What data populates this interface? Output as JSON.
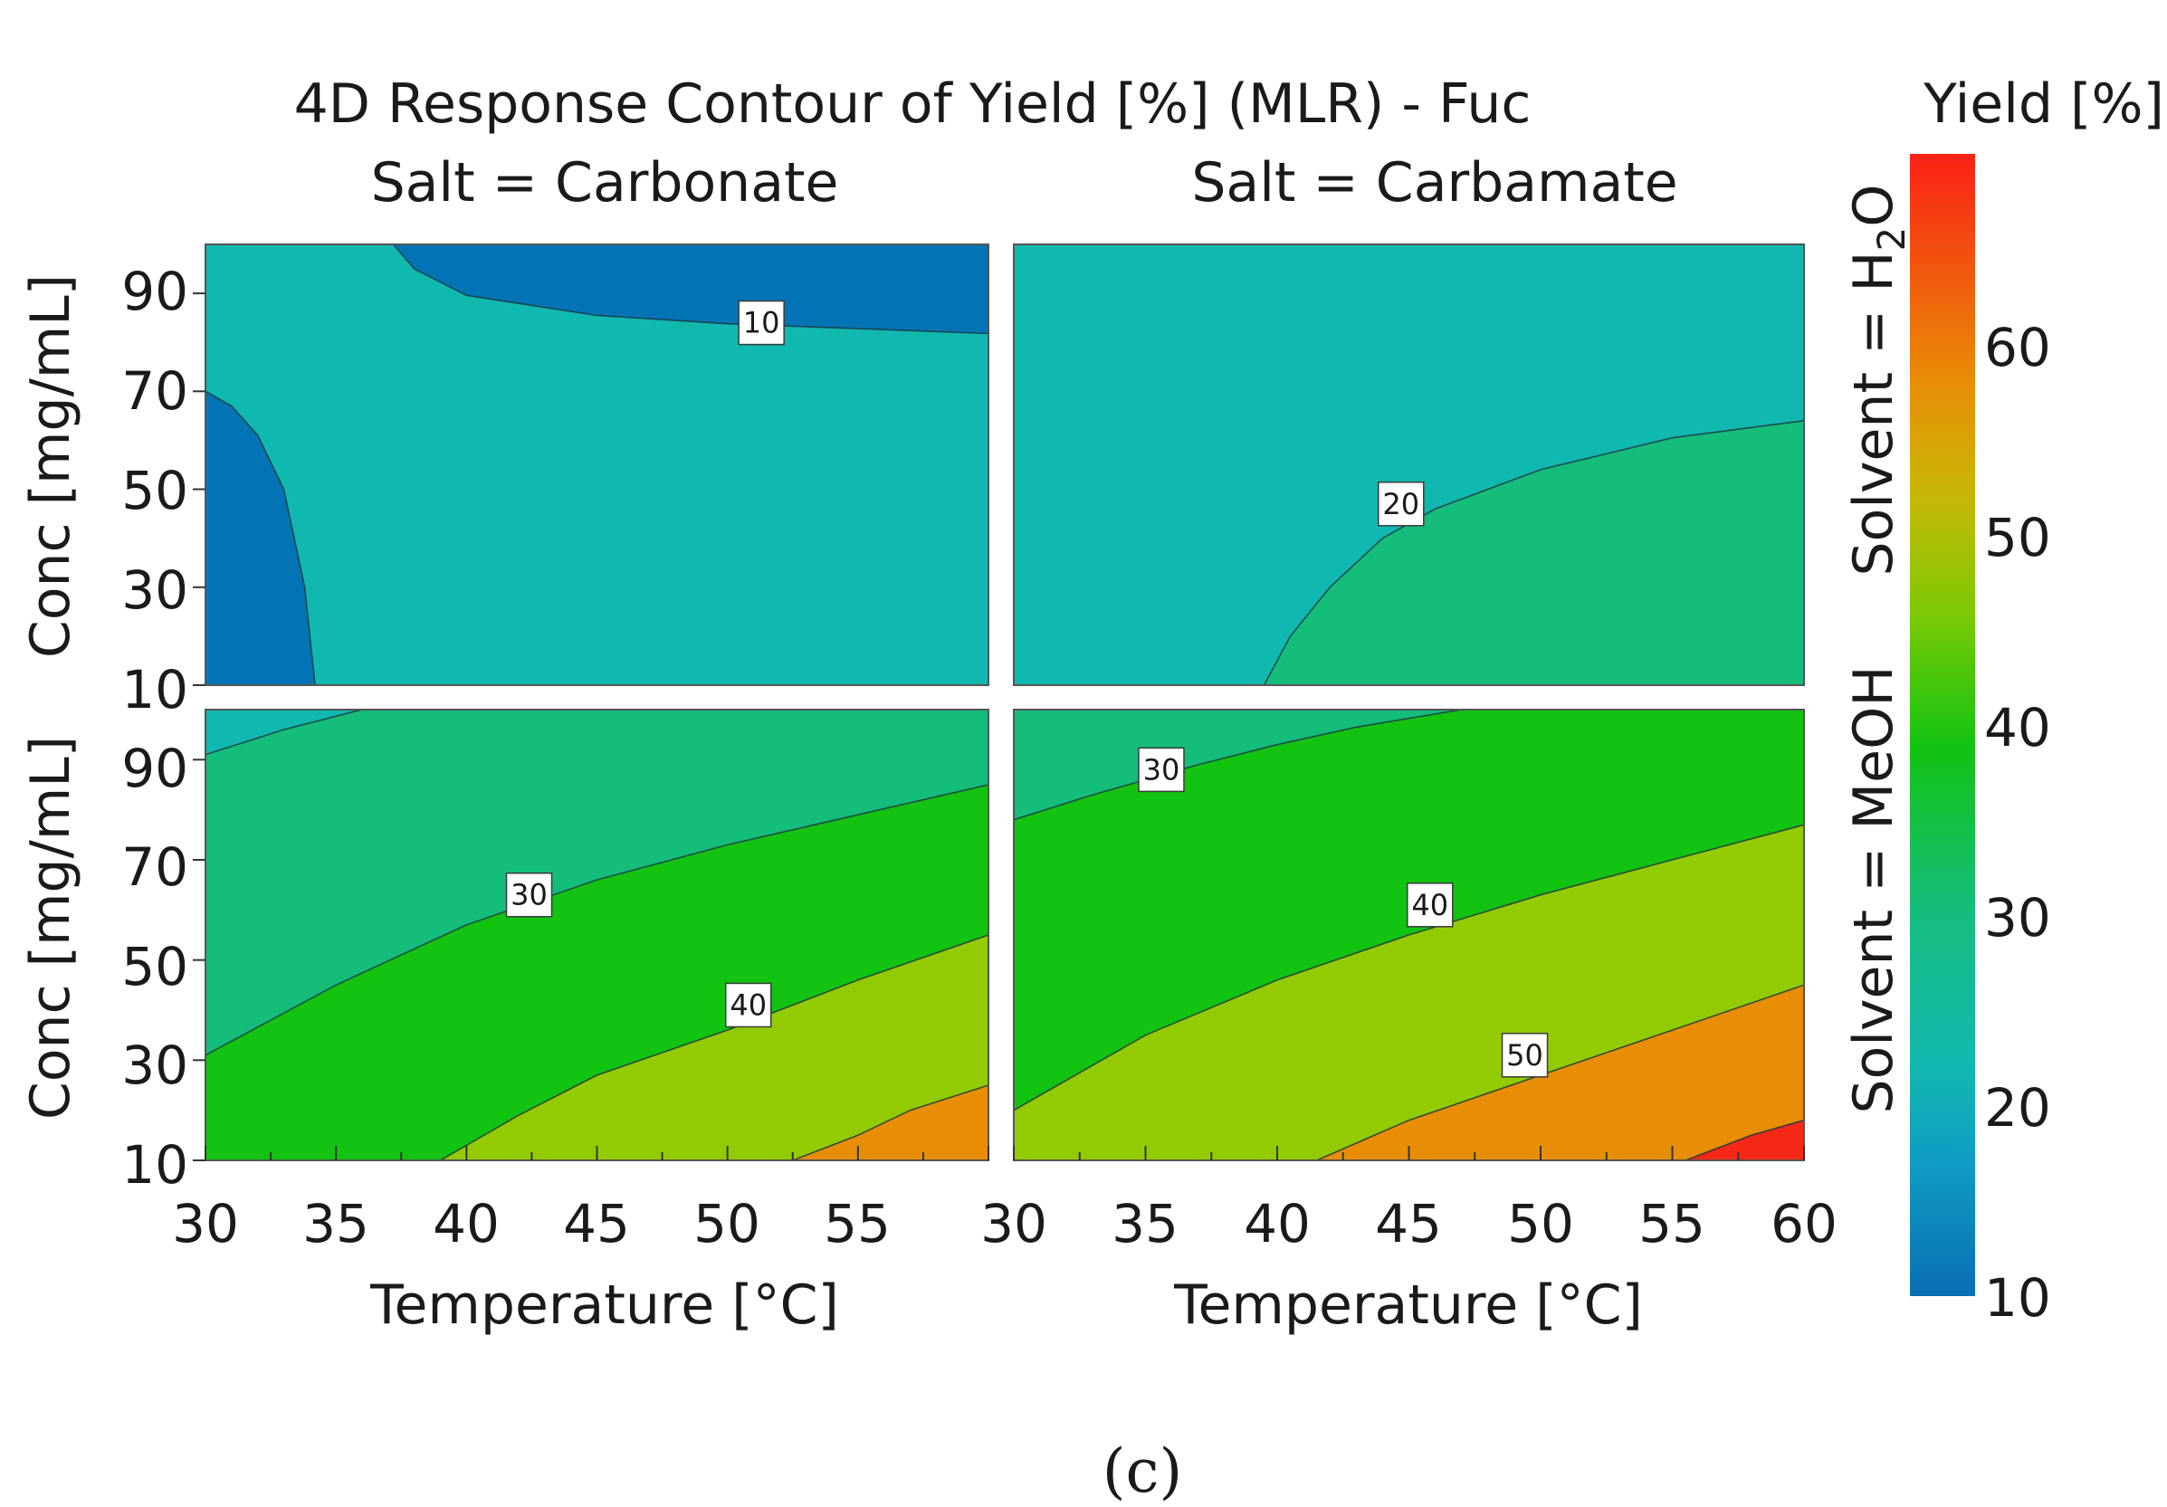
{
  "chart_data": {
    "type": "contour",
    "title": "4D Response Contour of Yield [%] (MLR) - Fuc",
    "columns": [
      "Salt = Carbonate",
      "Salt = Carbamate"
    ],
    "rows": [
      "Solvent = H₂O",
      "Solvent = MeOH"
    ],
    "xlabel": "Temperature [°C]",
    "ylabel": "Conc [mg/mL]",
    "xlim": [
      30,
      60
    ],
    "ylim": [
      10,
      100
    ],
    "xticks": [
      "30",
      "35",
      "40",
      "45",
      "50",
      "55",
      "60"
    ],
    "yticks": [
      "10",
      "30",
      "50",
      "70",
      "90"
    ],
    "colorbar": {
      "title": "Yield [%]",
      "range": [
        10,
        70
      ],
      "ticks": [
        "10",
        "20",
        "30",
        "40",
        "50",
        "60"
      ]
    },
    "level_colors": {
      "l10": "#0274b6",
      "l20": "#10b8b0",
      "l30": "#14bd7a",
      "l40": "#12c312",
      "l50": "#93cb03",
      "l60": "#e88d06",
      "l70": "#f52818"
    },
    "caption": "(c)",
    "panels": [
      {
        "id": "carbonate-h2o",
        "regions": [
          {
            "level": "l20",
            "points": [
              [
                30,
                10
              ],
              [
                60,
                10
              ],
              [
                60,
                100
              ],
              [
                30,
                100
              ]
            ]
          },
          {
            "level": "l10",
            "points": [
              [
                37.2,
                100
              ],
              [
                38,
                95
              ],
              [
                40,
                89.6
              ],
              [
                45,
                85.5
              ],
              [
                50,
                83.8
              ],
              [
                55,
                82.8
              ],
              [
                60,
                81.8
              ],
              [
                60,
                100
              ]
            ]
          },
          {
            "level": "l10",
            "points": [
              [
                30,
                70
              ],
              [
                31,
                67
              ],
              [
                32,
                61
              ],
              [
                33,
                50
              ],
              [
                33.8,
                30
              ],
              [
                34.2,
                10
              ],
              [
                30,
                10
              ]
            ]
          }
        ],
        "contours": [
          {
            "level": 10,
            "points": [
              [
                37.2,
                100
              ],
              [
                38,
                95
              ],
              [
                40,
                89.6
              ],
              [
                45,
                85.5
              ],
              [
                50,
                83.8
              ],
              [
                55,
                82.8
              ],
              [
                60,
                81.8
              ]
            ]
          },
          {
            "level": 10,
            "points": [
              [
                30,
                70
              ],
              [
                31,
                67
              ],
              [
                32,
                61
              ],
              [
                33,
                50
              ],
              [
                33.8,
                30
              ],
              [
                34.2,
                10
              ]
            ]
          }
        ],
        "labels": [
          {
            "text": "10",
            "x": 51.3,
            "y": 84
          }
        ]
      },
      {
        "id": "carbamate-h2o",
        "regions": [
          {
            "level": "l20",
            "points": [
              [
                30,
                10
              ],
              [
                60,
                10
              ],
              [
                60,
                100
              ],
              [
                30,
                100
              ]
            ]
          },
          {
            "level": "l30",
            "points": [
              [
                39.5,
                10
              ],
              [
                40.5,
                20
              ],
              [
                42,
                30
              ],
              [
                44,
                40
              ],
              [
                46,
                46
              ],
              [
                50,
                54
              ],
              [
                55,
                60.5
              ],
              [
                60,
                64
              ],
              [
                60,
                10
              ]
            ]
          }
        ],
        "contours": [
          {
            "level": 20,
            "points": [
              [
                39.5,
                10
              ],
              [
                40.5,
                20
              ],
              [
                42,
                30
              ],
              [
                44,
                40
              ],
              [
                46,
                46
              ],
              [
                50,
                54
              ],
              [
                55,
                60.5
              ],
              [
                60,
                64
              ]
            ]
          }
        ],
        "labels": [
          {
            "text": "20",
            "x": 44.7,
            "y": 47
          }
        ]
      },
      {
        "id": "carbonate-meoh",
        "regions": [
          {
            "level": "l30",
            "points": [
              [
                30,
                10
              ],
              [
                60,
                10
              ],
              [
                60,
                100
              ],
              [
                30,
                100
              ]
            ]
          },
          {
            "level": "l20",
            "points": [
              [
                30,
                100
              ],
              [
                30,
                91
              ],
              [
                33,
                96
              ],
              [
                36,
                100
              ]
            ]
          },
          {
            "level": "l40",
            "points": [
              [
                30,
                31
              ],
              [
                35,
                45
              ],
              [
                40,
                57
              ],
              [
                45,
                66
              ],
              [
                50,
                73
              ],
              [
                55,
                79
              ],
              [
                60,
                85
              ],
              [
                60,
                10
              ],
              [
                30,
                10
              ]
            ]
          },
          {
            "level": "l50",
            "points": [
              [
                39,
                10
              ],
              [
                42,
                19
              ],
              [
                45,
                27
              ],
              [
                50,
                36
              ],
              [
                55,
                46
              ],
              [
                60,
                55
              ],
              [
                60,
                10
              ]
            ]
          },
          {
            "level": "l60",
            "points": [
              [
                52.5,
                10
              ],
              [
                55,
                15
              ],
              [
                57,
                20
              ],
              [
                60,
                25
              ],
              [
                60,
                10
              ]
            ]
          }
        ],
        "contours": [
          {
            "level": 20,
            "points": [
              [
                30,
                91
              ],
              [
                33,
                96
              ],
              [
                36,
                100
              ]
            ]
          },
          {
            "level": 30,
            "points": [
              [
                30,
                31
              ],
              [
                35,
                45
              ],
              [
                40,
                57
              ],
              [
                45,
                66
              ],
              [
                50,
                73
              ],
              [
                55,
                79
              ],
              [
                60,
                85
              ]
            ]
          },
          {
            "level": 40,
            "points": [
              [
                39,
                10
              ],
              [
                42,
                19
              ],
              [
                45,
                27
              ],
              [
                50,
                36
              ],
              [
                55,
                46
              ],
              [
                60,
                55
              ]
            ]
          },
          {
            "level": 50,
            "points": [
              [
                52.5,
                10
              ],
              [
                55,
                15
              ],
              [
                57,
                20
              ],
              [
                60,
                25
              ]
            ]
          }
        ],
        "labels": [
          {
            "text": "30",
            "x": 42.4,
            "y": 63
          },
          {
            "text": "40",
            "x": 50.8,
            "y": 41
          }
        ]
      },
      {
        "id": "carbamate-meoh",
        "regions": [
          {
            "level": "l30",
            "points": [
              [
                30,
                10
              ],
              [
                60,
                10
              ],
              [
                60,
                100
              ],
              [
                30,
                100
              ]
            ]
          },
          {
            "level": "l40",
            "points": [
              [
                30,
                78
              ],
              [
                33,
                83
              ],
              [
                37,
                89
              ],
              [
                40,
                93
              ],
              [
                43,
                96.5
              ],
              [
                47,
                100
              ],
              [
                60,
                100
              ],
              [
                60,
                10
              ],
              [
                30,
                10
              ]
            ]
          },
          {
            "level": "l50",
            "points": [
              [
                30,
                20
              ],
              [
                35,
                35
              ],
              [
                40,
                46
              ],
              [
                45,
                55
              ],
              [
                50,
                63
              ],
              [
                55,
                70
              ],
              [
                60,
                77
              ],
              [
                60,
                10
              ],
              [
                30,
                10
              ]
            ]
          },
          {
            "level": "l60",
            "points": [
              [
                41.5,
                10
              ],
              [
                45,
                18
              ],
              [
                50,
                27
              ],
              [
                55,
                36
              ],
              [
                60,
                45
              ],
              [
                60,
                10
              ]
            ]
          },
          {
            "level": "l70",
            "points": [
              [
                55.5,
                10
              ],
              [
                58,
                15
              ],
              [
                60,
                18
              ],
              [
                60,
                10
              ]
            ]
          }
        ],
        "contours": [
          {
            "level": 30,
            "points": [
              [
                30,
                78
              ],
              [
                33,
                83
              ],
              [
                37,
                89
              ],
              [
                40,
                93
              ],
              [
                43,
                96.5
              ],
              [
                47,
                100
              ]
            ]
          },
          {
            "level": 40,
            "points": [
              [
                30,
                20
              ],
              [
                35,
                35
              ],
              [
                40,
                46
              ],
              [
                45,
                55
              ],
              [
                50,
                63
              ],
              [
                55,
                70
              ],
              [
                60,
                77
              ]
            ]
          },
          {
            "level": 50,
            "points": [
              [
                41.5,
                10
              ],
              [
                45,
                18
              ],
              [
                50,
                27
              ],
              [
                55,
                36
              ],
              [
                60,
                45
              ]
            ]
          },
          {
            "level": 60,
            "points": [
              [
                55.5,
                10
              ],
              [
                58,
                15
              ],
              [
                60,
                18
              ]
            ]
          }
        ],
        "labels": [
          {
            "text": "30",
            "x": 35.6,
            "y": 88
          },
          {
            "text": "40",
            "x": 45.8,
            "y": 61
          },
          {
            "text": "50",
            "x": 49.4,
            "y": 31
          }
        ]
      }
    ]
  }
}
